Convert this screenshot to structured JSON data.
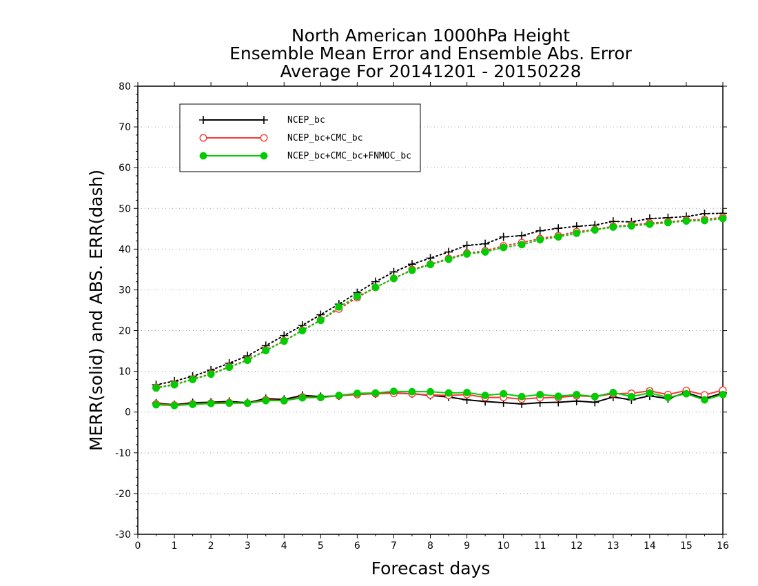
{
  "chart_data": {
    "type": "line",
    "title": [
      "North American 1000hPa Height",
      "Ensemble Mean Error and Ensemble Abs. Error",
      "Average For 20141201 - 20150228"
    ],
    "xlabel": "Forecast days",
    "ylabel": "MERR(solid) and ABS. ERR(dash)",
    "xlim": [
      0,
      16
    ],
    "ylim": [
      -30,
      80
    ],
    "xticks": [
      "0",
      "1",
      "2",
      "3",
      "4",
      "5",
      "6",
      "7",
      "8",
      "9",
      "10",
      "11",
      "12",
      "13",
      "14",
      "15",
      "16"
    ],
    "yticks": [
      "-30",
      "-20",
      "-10",
      "0",
      "10",
      "20",
      "30",
      "40",
      "50",
      "60",
      "70",
      "80"
    ],
    "grid": "horizontal dotted",
    "legend_position": "top-left",
    "x": [
      0.5,
      1.0,
      1.5,
      2.0,
      2.5,
      3.0,
      3.5,
      4.0,
      4.5,
      5.0,
      5.5,
      6.0,
      6.5,
      7.0,
      7.5,
      8.0,
      8.5,
      9.0,
      9.5,
      10.0,
      10.5,
      11.0,
      11.5,
      12.0,
      12.5,
      13.0,
      13.5,
      14.0,
      14.5,
      15.0,
      15.5,
      16.0
    ],
    "series": [
      {
        "name": "NCEP_bc",
        "color": "#000000",
        "marker": "plus",
        "merr": [
          2.2,
          1.8,
          2.3,
          2.4,
          2.6,
          2.3,
          3.3,
          3.1,
          4.1,
          3.8,
          4.0,
          4.4,
          4.5,
          4.7,
          4.5,
          4.1,
          3.7,
          3.0,
          2.6,
          2.3,
          2.0,
          2.3,
          2.4,
          2.7,
          2.4,
          3.7,
          3.0,
          4.0,
          3.3,
          4.8,
          3.3,
          4.7
        ],
        "abs_err": [
          6.7,
          7.6,
          8.8,
          10.3,
          12.0,
          13.8,
          16.3,
          18.8,
          21.3,
          23.9,
          26.5,
          29.3,
          32.0,
          34.4,
          36.3,
          37.8,
          39.3,
          40.9,
          41.3,
          43.0,
          43.3,
          44.5,
          45.1,
          45.6,
          45.9,
          46.8,
          46.7,
          47.5,
          47.7,
          48.0,
          48.7,
          48.8
        ]
      },
      {
        "name": "NCEP_bc+CMC_bc",
        "color": "#ff3333",
        "marker": "circle-open",
        "merr": [
          2.0,
          1.7,
          2.0,
          2.2,
          2.3,
          2.2,
          3.0,
          2.8,
          3.7,
          3.6,
          4.0,
          4.3,
          4.5,
          4.6,
          4.5,
          4.2,
          4.1,
          4.3,
          3.6,
          3.6,
          3.2,
          3.5,
          3.6,
          4.0,
          3.8,
          4.5,
          4.6,
          5.2,
          4.3,
          5.3,
          4.2,
          5.4
        ],
        "abs_err": [
          6.0,
          6.8,
          8.1,
          9.4,
          11.1,
          12.8,
          15.2,
          17.5,
          20.1,
          22.6,
          25.3,
          28.1,
          30.6,
          32.8,
          35.0,
          36.3,
          37.7,
          39.0,
          39.6,
          40.8,
          41.6,
          42.6,
          43.3,
          44.3,
          44.8,
          45.6,
          45.9,
          46.4,
          46.7,
          47.1,
          47.3,
          47.8
        ]
      },
      {
        "name": "NCEP_bc+CMC_bc+FNMOC_bc",
        "color": "#00cc00",
        "marker": "circle-filled",
        "merr": [
          1.8,
          1.6,
          1.9,
          2.1,
          2.2,
          2.2,
          2.8,
          2.8,
          3.5,
          3.6,
          4.1,
          4.6,
          4.7,
          5.1,
          5.0,
          5.0,
          4.7,
          4.8,
          4.1,
          4.5,
          3.8,
          4.3,
          3.9,
          4.3,
          3.8,
          4.8,
          3.8,
          4.7,
          3.6,
          4.5,
          3.0,
          4.3
        ],
        "abs_err": [
          5.9,
          6.7,
          8.0,
          9.3,
          11.0,
          12.7,
          15.1,
          17.4,
          20.0,
          22.5,
          25.8,
          28.4,
          30.6,
          32.8,
          34.8,
          36.2,
          37.5,
          38.8,
          39.3,
          40.4,
          41.1,
          42.3,
          43.0,
          43.9,
          44.7,
          45.4,
          45.7,
          46.1,
          46.5,
          46.9,
          47.0,
          47.5
        ]
      }
    ]
  }
}
